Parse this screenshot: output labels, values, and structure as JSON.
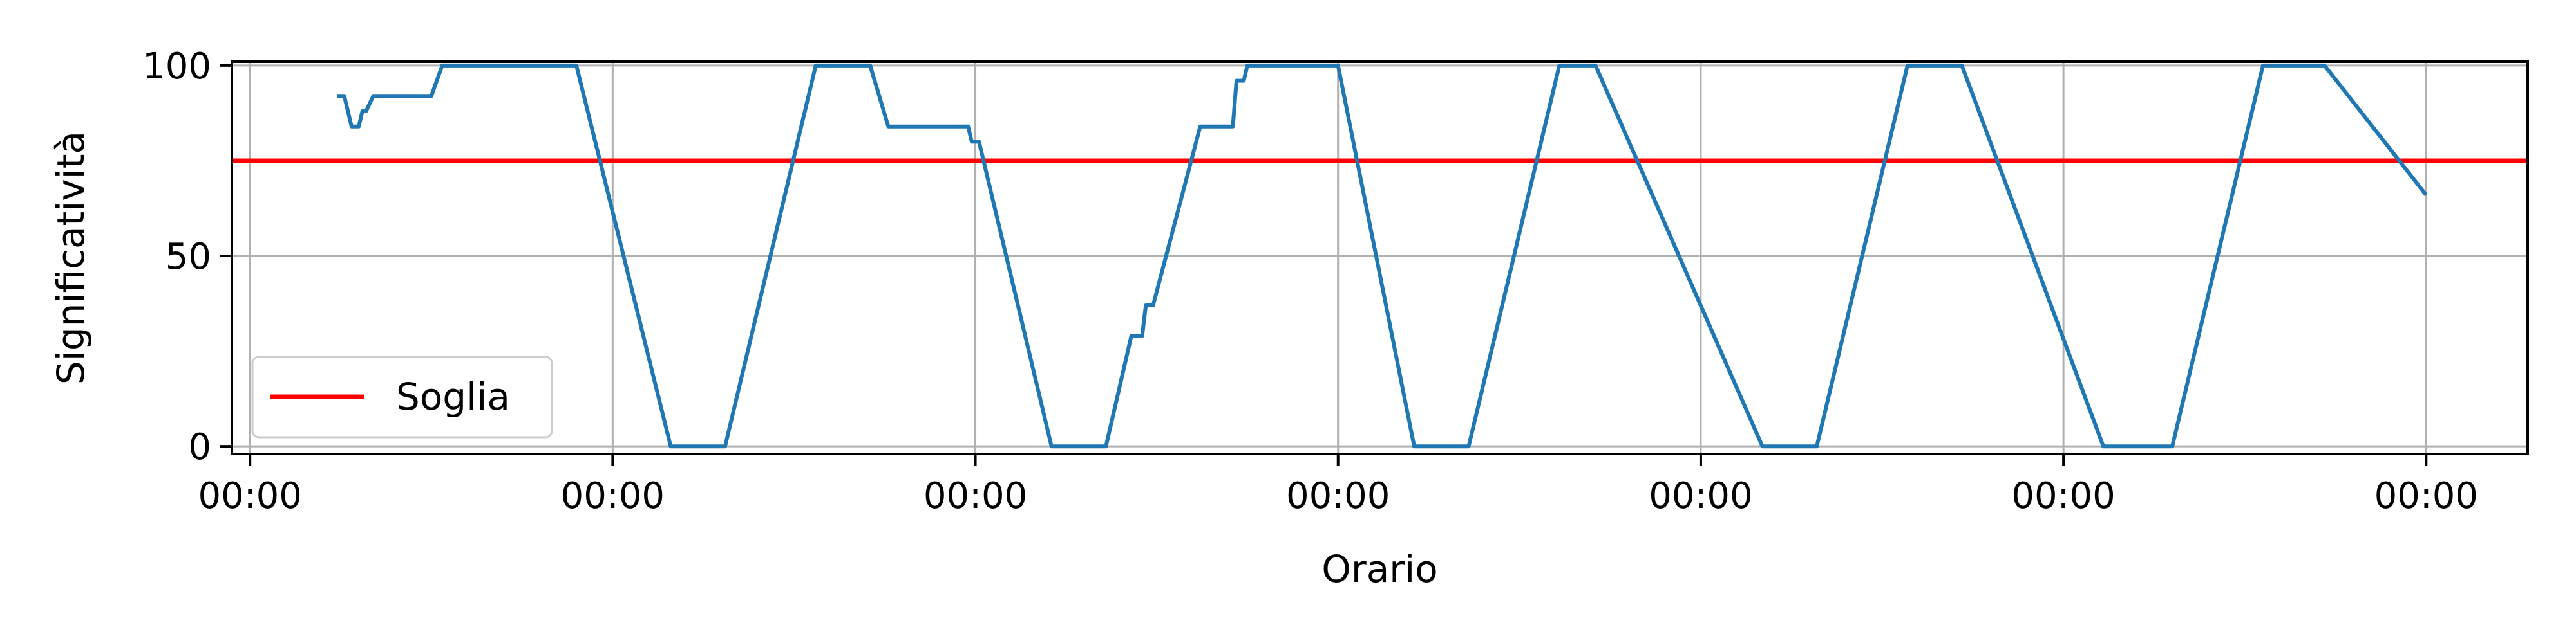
{
  "chart_data": {
    "type": "line",
    "xlabel": "Orario",
    "ylabel": "Significatività",
    "x_tick_labels": [
      "00:00",
      "00:00",
      "00:00",
      "00:00",
      "00:00",
      "00:00",
      "00:00"
    ],
    "x_ticks": [
      0,
      1,
      2,
      3,
      4,
      5,
      6
    ],
    "xlim": [
      -0.05,
      6.28
    ],
    "y_ticks": [
      0,
      50,
      100
    ],
    "y_tick_labels": [
      "0",
      "50",
      "100"
    ],
    "ylim": [
      -2,
      101
    ],
    "grid": true,
    "legend_position": "lower-left",
    "threshold": {
      "name": "Soglia",
      "value": 75,
      "color": "#ff0000"
    },
    "series": [
      {
        "color": "#1f77b4",
        "x": [
          0.24,
          0.26,
          0.28,
          0.3,
          0.31,
          0.32,
          0.34,
          0.35,
          0.36,
          0.38,
          0.5,
          0.53,
          0.6,
          0.9,
          1.16,
          1.31,
          1.56,
          1.71,
          1.76,
          1.98,
          1.99,
          2.01,
          2.21,
          2.36,
          2.43,
          2.46,
          2.47,
          2.49,
          2.62,
          2.71,
          2.72,
          2.74,
          2.75,
          2.76,
          3.0,
          3.21,
          3.36,
          3.61,
          3.71,
          4.17,
          4.32,
          4.57,
          4.72,
          5.11,
          5.3,
          5.55,
          5.72,
          6.0
        ],
        "y": [
          92,
          92,
          84,
          84,
          88,
          88,
          92,
          92,
          92,
          92,
          92,
          100,
          100,
          100,
          0,
          0,
          100,
          100,
          84,
          84,
          80,
          80,
          0,
          0,
          29,
          29,
          37,
          37,
          84,
          84,
          96,
          96,
          100,
          100,
          100,
          0,
          0,
          100,
          100,
          0,
          0,
          100,
          100,
          0,
          0,
          100,
          100,
          66
        ]
      }
    ]
  }
}
